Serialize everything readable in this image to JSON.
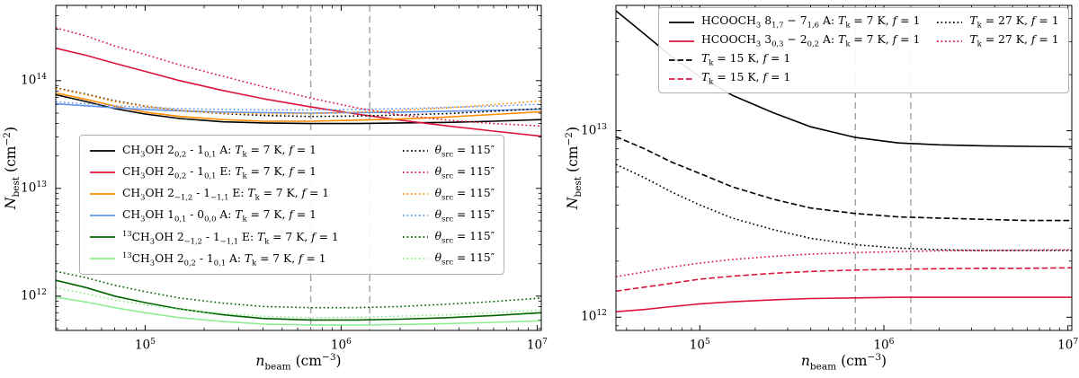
{
  "colors": {
    "black": "#000000",
    "crimson": "#dc143c",
    "orange": "#ff8c00",
    "blue": "#6495ed",
    "dark_green": "#006400",
    "light_green": "#90ee90",
    "vline_gray": "#a6a6a6"
  },
  "chart_data": [
    {
      "type": "line",
      "title": "",
      "xlabel": "*n*_{beam} (cm^{−3})",
      "ylabel": "*N*_{best} (cm^{−2})",
      "xscale": "log",
      "yscale": "log",
      "xlim": [
        35000.0,
        10500000.0
      ],
      "ylim": [
        480000000000.0,
        500000000000000.0
      ],
      "xticks": [
        100000.0,
        1000000.0,
        10000000.0
      ],
      "yticks": [
        1000000000000.0,
        10000000000000.0,
        100000000000000.0
      ],
      "grid": false,
      "vlines": [
        700000.0,
        1400000.0
      ],
      "x": [
        35000.0,
        50000.0,
        70000.0,
        100000.0,
        150000.0,
        250000.0,
        400000.0,
        700000.0,
        1200000.0,
        2000000.0,
        3500000.0,
        6000000.0,
        10500000.0
      ],
      "series": [
        {
          "name": "CH_{3}OH 2_{0,2} - 1_{0,1} A: *T*_{k} = 7 K, *f* = 1",
          "color": "#000000",
          "dash": "solid",
          "values": [
            74000000000000.0,
            64000000000000.0,
            55000000000000.0,
            49000000000000.0,
            44500000000000.0,
            41500000000000.0,
            40500000000000.0,
            40000000000000.0,
            40000000000000.0,
            40500000000000.0,
            41000000000000.0,
            42000000000000.0,
            43500000000000.0
          ]
        },
        {
          "name": "CH_{3}OH 2_{0,2} - 1_{0,1} E: *T*_{k} = 7 K, *f* = 1",
          "color": "#dc143c",
          "dash": "solid",
          "values": [
            200000000000000.0,
            172000000000000.0,
            145000000000000.0,
            122000000000000.0,
            100000000000000.0,
            81000000000000.0,
            68000000000000.0,
            57000000000000.0,
            49000000000000.0,
            43000000000000.0,
            38000000000000.0,
            34000000000000.0,
            30500000000000.0
          ]
        },
        {
          "name": "CH_{3}OH 2_{−1,2} - 1_{−1,1} E: *T*_{k} = 7 K, *f* = 1",
          "color": "#ff8c00",
          "dash": "solid",
          "values": [
            77000000000000.0,
            67000000000000.0,
            58000000000000.0,
            51000000000000.0,
            46500000000000.0,
            43500000000000.0,
            42000000000000.0,
            42000000000000.0,
            43000000000000.0,
            44000000000000.0,
            46000000000000.0,
            48500000000000.0,
            51500000000000.0
          ]
        },
        {
          "name": "CH_{3}OH 1_{0,1} - 0_{0,0} A: *T*_{k} = 7 K, *f* = 1",
          "color": "#6495ed",
          "dash": "solid",
          "values": [
            61000000000000.0,
            58500000000000.0,
            56000000000000.0,
            54000000000000.0,
            52500000000000.0,
            51000000000000.0,
            50500000000000.0,
            50000000000000.0,
            50500000000000.0,
            51000000000000.0,
            52000000000000.0,
            53000000000000.0,
            54500000000000.0
          ]
        },
        {
          "name": "^{13}CH_{3}OH 2_{−1,2} - 1_{−1,1} E: *T*_{k} = 7 K, *f* = 1",
          "color": "#006400",
          "dash": "solid",
          "values": [
            1400000000000.0,
            1200000000000.0,
            1000000000000.0,
            870000000000.0,
            760000000000.0,
            670000000000.0,
            620000000000.0,
            600000000000.0,
            600000000000.0,
            610000000000.0,
            630000000000.0,
            660000000000.0,
            700000000000.0
          ]
        },
        {
          "name": "^{13}CH_{3}OH 2_{0,2} - 1_{0,1} A: *T*_{k} = 7 K, *f* = 1",
          "color": "#90ee90",
          "dash": "solid",
          "values": [
            980000000000.0,
            880000000000.0,
            780000000000.0,
            700000000000.0,
            630000000000.0,
            580000000000.0,
            550000000000.0,
            540000000000.0,
            540000000000.0,
            545000000000.0,
            555000000000.0,
            570000000000.0,
            590000000000.0
          ]
        },
        {
          "name": "*θ*_{src} = 115″",
          "color": "#000000",
          "dash": "dotted",
          "values": [
            86000000000000.0,
            75000000000000.0,
            65000000000000.0,
            58000000000000.0,
            53000000000000.0,
            49500000000000.0,
            47500000000000.0,
            46500000000000.0,
            47000000000000.0,
            48000000000000.0,
            49500000000000.0,
            52000000000000.0,
            55000000000000.0
          ]
        },
        {
          "name": "*θ*_{src} = 115″",
          "color": "#dc143c",
          "dash": "dotted",
          "values": [
            310000000000000.0,
            260000000000000.0,
            210000000000000.0,
            175000000000000.0,
            140000000000000.0,
            110000000000000.0,
            88000000000000.0,
            69000000000000.0,
            56000000000000.0,
            48000000000000.0,
            43000000000000.0,
            40000000000000.0,
            38000000000000.0
          ]
        },
        {
          "name": "*θ*_{src} = 115″",
          "color": "#ff8c00",
          "dash": "dotted",
          "values": [
            85000000000000.0,
            74000000000000.0,
            64000000000000.0,
            57500000000000.0,
            53000000000000.0,
            50000000000000.0,
            49000000000000.0,
            49500000000000.0,
            51000000000000.0,
            53000000000000.0,
            56000000000000.0,
            60000000000000.0,
            65000000000000.0
          ]
        },
        {
          "name": "*θ*_{src} = 115″",
          "color": "#6495ed",
          "dash": "dotted",
          "values": [
            63500000000000.0,
            61000000000000.0,
            58500000000000.0,
            56500000000000.0,
            55000000000000.0,
            54000000000000.0,
            53500000000000.0,
            53500000000000.0,
            54000000000000.0,
            55000000000000.0,
            56500000000000.0,
            58000000000000.0,
            60500000000000.0
          ]
        },
        {
          "name": "*θ*_{src} = 115″",
          "color": "#006400",
          "dash": "dotted",
          "values": [
            1700000000000.0,
            1480000000000.0,
            1260000000000.0,
            1100000000000.0,
            960000000000.0,
            860000000000.0,
            800000000000.0,
            780000000000.0,
            780000000000.0,
            800000000000.0,
            840000000000.0,
            890000000000.0,
            960000000000.0
          ]
        },
        {
          "name": "*θ*_{src} = 115″",
          "color": "#90ee90",
          "dash": "dotted",
          "values": [
            1200000000000.0,
            1050000000000.0,
            920000000000.0,
            830000000000.0,
            750000000000.0,
            690000000000.0,
            650000000000.0,
            630000000000.0,
            635000000000.0,
            650000000000.0,
            670000000000.0,
            700000000000.0,
            740000000000.0
          ]
        }
      ],
      "legend": {
        "position": "center-left",
        "columns": [
          [
            0,
            1,
            2,
            3,
            4,
            5
          ],
          [
            6,
            7,
            8,
            9,
            10,
            11
          ]
        ]
      }
    },
    {
      "type": "line",
      "title": "",
      "xlabel": "*n*_{beam} (cm^{−3})",
      "ylabel": "*N*_{best} (cm^{−2})",
      "xscale": "log",
      "yscale": "log",
      "xlim": [
        35000.0,
        10500000.0
      ],
      "ylim": [
        850000000000.0,
        47000000000000.0
      ],
      "xticks": [
        100000.0,
        1000000.0,
        10000000.0
      ],
      "yticks": [
        1000000000000.0,
        10000000000000.0
      ],
      "grid": false,
      "vlines": [
        700000.0,
        1400000.0
      ],
      "x": [
        35000.0,
        50000.0,
        70000.0,
        100000.0,
        150000.0,
        250000.0,
        400000.0,
        700000.0,
        1200000.0,
        2000000.0,
        3500000.0,
        6000000.0,
        10500000.0
      ],
      "series": [
        {
          "name": "HCOOCH_{3} 8_{1,7} − 7_{1,6} A: *T*_{k} = 7 K, *f* = 1",
          "color": "#000000",
          "dash": "solid",
          "values": [
            44000000000000.0,
            33000000000000.0,
            25000000000000.0,
            19500000000000.0,
            15500000000000.0,
            12500000000000.0,
            10500000000000.0,
            9200000000000.0,
            8600000000000.0,
            8400000000000.0,
            8300000000000.0,
            8250000000000.0,
            8200000000000.0
          ]
        },
        {
          "name": "HCOOCH_{3} 3_{0,3} − 2_{0,2} A: *T*_{k} = 7 K, *f* = 1",
          "color": "#dc143c",
          "dash": "solid",
          "values": [
            1070000000000.0,
            1100000000000.0,
            1140000000000.0,
            1180000000000.0,
            1210000000000.0,
            1240000000000.0,
            1260000000000.0,
            1270000000000.0,
            1280000000000.0,
            1280000000000.0,
            1280000000000.0,
            1280000000000.0,
            1280000000000.0
          ]
        },
        {
          "name": "*T*_{k} = 15 K, *f* = 1",
          "color": "#000000",
          "dash": "dashed",
          "values": [
            9300000000000.0,
            8000000000000.0,
            6800000000000.0,
            5900000000000.0,
            5000000000000.0,
            4300000000000.0,
            3850000000000.0,
            3600000000000.0,
            3450000000000.0,
            3400000000000.0,
            3350000000000.0,
            3300000000000.0,
            3300000000000.0
          ]
        },
        {
          "name": "*T*_{k} = 15 K, *f* = 1",
          "color": "#dc143c",
          "dash": "dashed",
          "values": [
            1380000000000.0,
            1450000000000.0,
            1520000000000.0,
            1600000000000.0,
            1660000000000.0,
            1720000000000.0,
            1760000000000.0,
            1790000000000.0,
            1810000000000.0,
            1820000000000.0,
            1830000000000.0,
            1830000000000.0,
            1840000000000.0
          ]
        },
        {
          "name": "*T*_{k} = 27 K, *f* = 1",
          "color": "#000000",
          "dash": "dotted",
          "values": [
            6600000000000.0,
            5600000000000.0,
            4700000000000.0,
            4000000000000.0,
            3400000000000.0,
            2950000000000.0,
            2650000000000.0,
            2450000000000.0,
            2350000000000.0,
            2300000000000.0,
            2280000000000.0,
            2280000000000.0,
            2280000000000.0
          ]
        },
        {
          "name": "*T*_{k} = 27 K, *f* = 1",
          "color": "#dc143c",
          "dash": "dotted",
          "values": [
            1650000000000.0,
            1750000000000.0,
            1860000000000.0,
            1950000000000.0,
            2040000000000.0,
            2120000000000.0,
            2180000000000.0,
            2220000000000.0,
            2250000000000.0,
            2270000000000.0,
            2280000000000.0,
            2290000000000.0,
            2300000000000.0
          ]
        }
      ],
      "legend": {
        "position": "top",
        "columns": [
          [
            0,
            1,
            2,
            3
          ],
          [
            4,
            5
          ]
        ]
      }
    }
  ]
}
